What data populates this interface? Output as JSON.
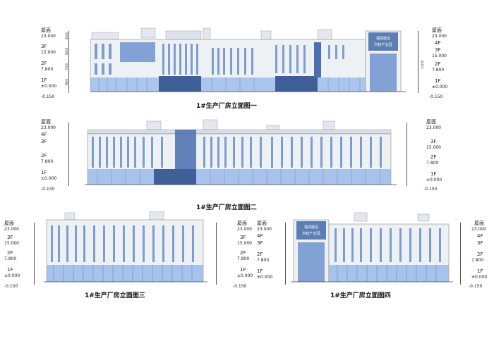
{
  "elevations": [
    {
      "title": "1#生产厂房立面图一",
      "sign_lines": [
        "福润建设",
        "科技产业园"
      ]
    },
    {
      "title": "1#生产厂房立面图二"
    },
    {
      "title": "1#生产厂房立面图三"
    },
    {
      "title": "1#生产厂房立面图四",
      "sign_lines": [
        "福润建设",
        "科技产业园"
      ]
    }
  ],
  "levels": {
    "roof": "屋面",
    "roof_elev": "23.000",
    "f4": "4F",
    "f4_elev": "19.000",
    "f3": "3F",
    "f3_elev": "15.000",
    "f2": "2F",
    "f2_elev": "7.800",
    "f1": "1F",
    "f1_elev": "±0.000",
    "ground_elev": "-0.150"
  },
  "dims": {
    "d4000": "4000",
    "d8000": "8000",
    "d7200": "7200",
    "d7800": "7800",
    "d23150": "23150",
    "d150": "150"
  },
  "colors": {
    "wall": "#eef1f4",
    "window": "#7e9cd0",
    "window_dark": "#4a6fae",
    "glass": "#8fb3e8",
    "sign": "#5b7fb4"
  }
}
